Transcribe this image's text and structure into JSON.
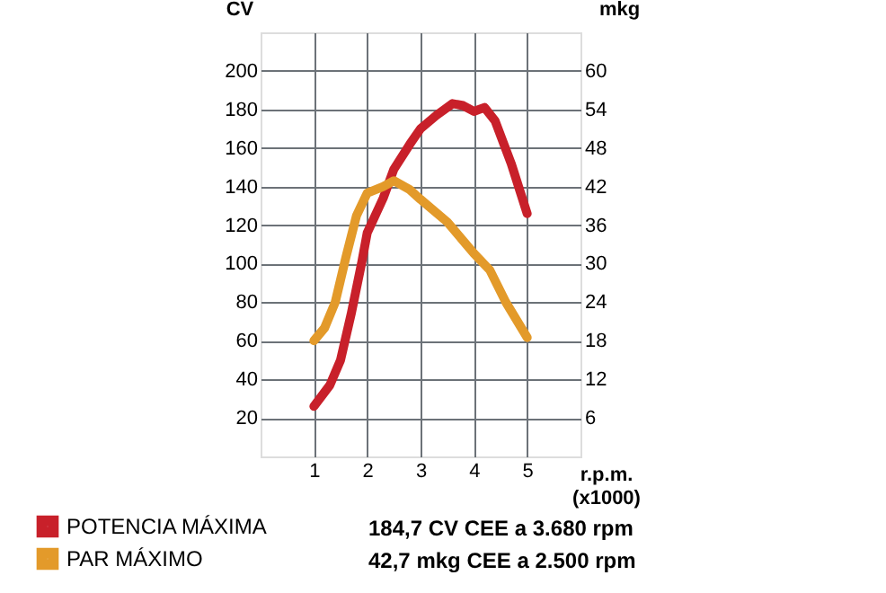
{
  "chart_data": {
    "type": "line",
    "xlabel": "r.p.m. (x1000)",
    "ylabel": "CV",
    "y2label": "mkg",
    "xlim": [
      0,
      6
    ],
    "xticks": [
      1,
      2,
      3,
      4,
      5
    ],
    "ylim": [
      0,
      220
    ],
    "yticks": [
      20,
      40,
      60,
      80,
      100,
      120,
      140,
      160,
      180,
      200
    ],
    "y2lim": [
      0,
      66
    ],
    "y2ticks": [
      6,
      12,
      18,
      24,
      30,
      36,
      42,
      48,
      54,
      60
    ],
    "grid": true,
    "legend": "bottom",
    "line_style": "solid",
    "series": [
      {
        "name": "POTENCIA MÁXIMA",
        "color": "#c8202a",
        "x": [
          1,
          1.3,
          1.5,
          1.7,
          1.9,
          2.0,
          2.3,
          2.5,
          2.8,
          3.0,
          3.3,
          3.6,
          3.8,
          4.0,
          4.2,
          4.4,
          4.7,
          5
        ],
        "values": [
          26,
          37,
          50,
          74,
          101,
          116,
          134,
          149,
          162,
          170,
          177,
          183,
          182,
          179,
          181,
          174,
          152,
          126
        ]
      },
      {
        "name": "PAR MÁXIMO",
        "color": "#e39a2a",
        "axis": "y2",
        "x": [
          1,
          1.2,
          1.4,
          1.6,
          1.8,
          2.0,
          2.3,
          2.5,
          2.8,
          3.0,
          3.5,
          4.0,
          4.3,
          4.6,
          5
        ],
        "values": [
          18,
          20,
          24,
          31,
          37.5,
          41,
          42,
          42.9,
          41.5,
          40,
          36.5,
          31.6,
          29,
          24,
          18.5
        ]
      }
    ],
    "annotations": [
      "184,7 CV CEE a 3.680 rpm",
      "42,7 mkg CEE a 2.500 rpm"
    ]
  }
}
